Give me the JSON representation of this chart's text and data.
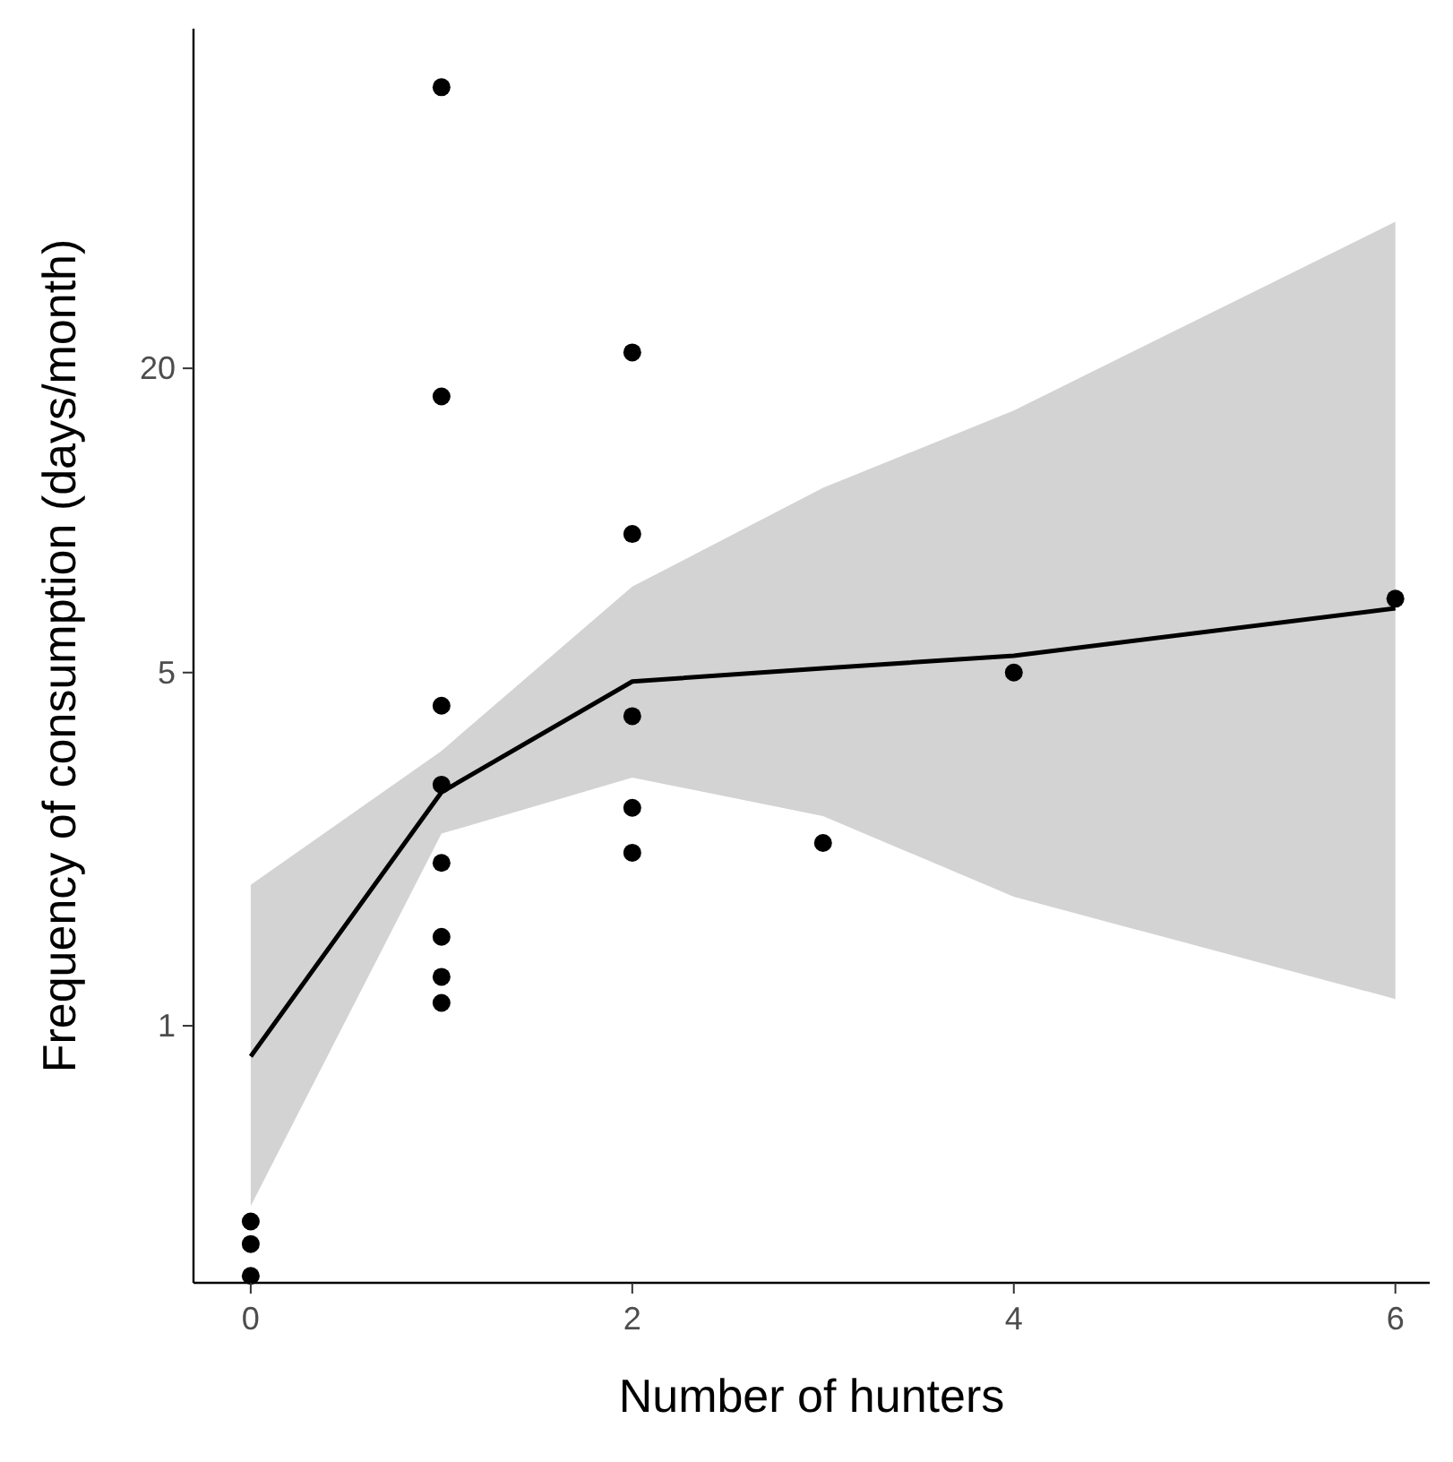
{
  "chart_data": {
    "type": "scatter",
    "xlabel": "Number of hunters",
    "ylabel": "Frequency of consumption (days/month)",
    "log": "y",
    "grid": false,
    "xlim": [
      -0.3,
      6.18
    ],
    "ylim": [
      0.31,
      94
    ],
    "xticks": [
      0,
      2,
      4,
      6
    ],
    "yticks": [
      1,
      5,
      20
    ],
    "series": [
      {
        "color": "#000000",
        "marker": "circle",
        "x": [
          0,
          0,
          0,
          1,
          1,
          1,
          1,
          1,
          1,
          1,
          1,
          2,
          2,
          2,
          2,
          2,
          3,
          4,
          6
        ],
        "values": [
          0.41,
          0.37,
          0.32,
          72,
          17.6,
          4.3,
          3.0,
          2.1,
          1.5,
          1.25,
          1.11,
          21.5,
          9.4,
          4.1,
          2.7,
          2.2,
          2.3,
          5.0,
          7.0
        ]
      },
      {
        "type": "line",
        "color": "#000000",
        "marker": "none",
        "line_style": "solid",
        "x": [
          0,
          1,
          2,
          3,
          4,
          6
        ],
        "values": [
          0.87,
          2.9,
          4.8,
          5.1,
          5.4,
          6.7
        ],
        "lower": [
          0.44,
          2.4,
          3.1,
          2.6,
          1.8,
          1.13
        ],
        "upper": [
          1.9,
          3.5,
          7.4,
          11.6,
          16.5,
          39
        ]
      }
    ]
  }
}
